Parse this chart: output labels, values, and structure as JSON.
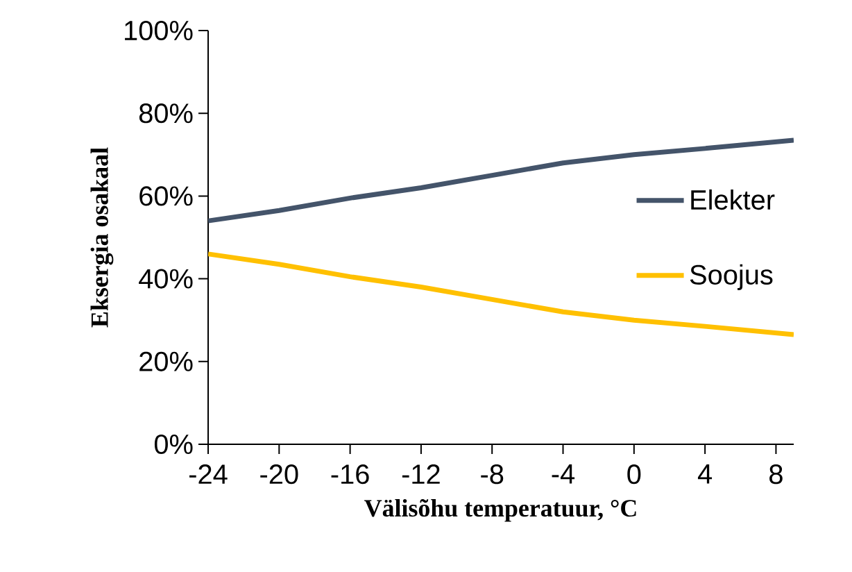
{
  "chart_data": {
    "type": "line",
    "xlabel": "Välisõhu temperatuur, °C",
    "ylabel": "Eksergia osakaal",
    "x": [
      -24,
      -20,
      -16,
      -12,
      -8,
      -4,
      -2,
      0,
      4,
      9
    ],
    "series": [
      {
        "name": "Elekter",
        "color": "#44546a",
        "values": [
          54,
          56.5,
          59.5,
          62,
          65,
          68,
          69,
          70,
          71.5,
          73.5
        ]
      },
      {
        "name": "Soojus",
        "color": "#ffc000",
        "values": [
          46,
          43.5,
          40.5,
          38,
          35,
          32,
          31,
          30,
          28.5,
          26.5
        ]
      }
    ],
    "xlim": [
      -24,
      9
    ],
    "xticks": [
      -24,
      -20,
      -16,
      -12,
      -8,
      -4,
      0,
      4,
      8
    ],
    "ylim": [
      0,
      100
    ],
    "yticks": [
      {
        "value": 0,
        "label": "0%"
      },
      {
        "value": 20,
        "label": "20%"
      },
      {
        "value": 40,
        "label": "40%"
      },
      {
        "value": 60,
        "label": "60%"
      },
      {
        "value": 80,
        "label": "80%"
      },
      {
        "value": 100,
        "label": "100%"
      }
    ],
    "legend": "right",
    "marker": "none",
    "line_style": "solid"
  }
}
